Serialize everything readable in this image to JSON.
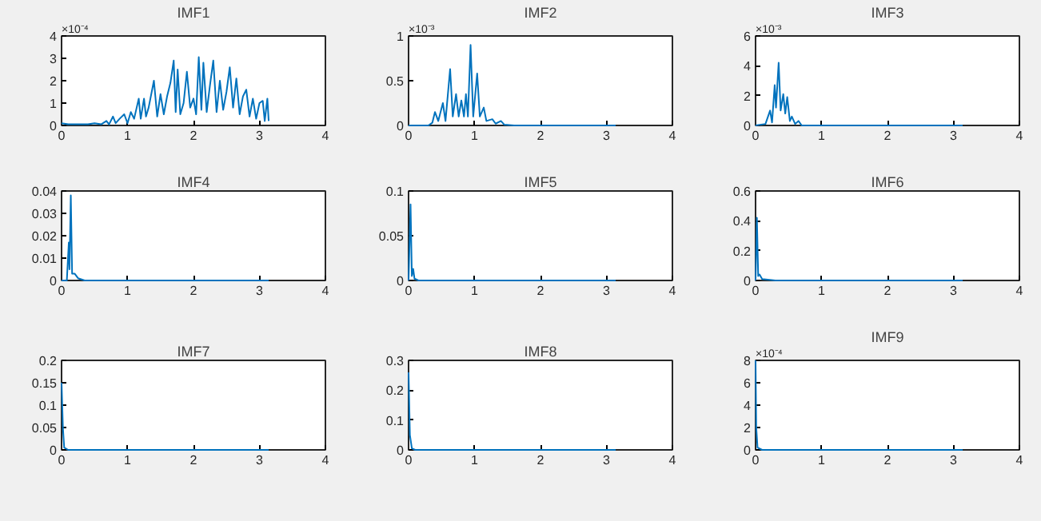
{
  "chart_data": [
    {
      "type": "line",
      "title": "IMF1",
      "color": "#0072bd",
      "annotations": [
        "×10⁻⁴"
      ],
      "xlim": [
        0,
        4
      ],
      "ylim": [
        0,
        4
      ],
      "xticks": [
        0,
        1,
        2,
        3,
        4
      ],
      "yticks": [
        0,
        1,
        2,
        3,
        4
      ],
      "x": [
        0,
        0.1,
        0.2,
        0.3,
        0.4,
        0.5,
        0.6,
        0.68,
        0.72,
        0.78,
        0.82,
        0.88,
        0.95,
        1.0,
        1.05,
        1.1,
        1.17,
        1.2,
        1.25,
        1.28,
        1.32,
        1.4,
        1.45,
        1.5,
        1.55,
        1.6,
        1.65,
        1.7,
        1.73,
        1.76,
        1.8,
        1.85,
        1.9,
        1.95,
        2.0,
        2.04,
        2.08,
        2.12,
        2.15,
        2.2,
        2.25,
        2.3,
        2.35,
        2.4,
        2.45,
        2.5,
        2.55,
        2.6,
        2.65,
        2.7,
        2.75,
        2.8,
        2.85,
        2.9,
        2.95,
        3.0,
        3.05,
        3.08,
        3.12,
        3.14
      ],
      "values": [
        0.1,
        0.05,
        0.05,
        0.05,
        0.05,
        0.1,
        0.05,
        0.2,
        0.05,
        0.4,
        0.1,
        0.3,
        0.5,
        0.1,
        0.6,
        0.3,
        1.2,
        0.3,
        1.2,
        0.4,
        0.8,
        2.0,
        0.4,
        1.4,
        0.5,
        1.3,
        1.9,
        2.9,
        0.6,
        2.5,
        0.5,
        1.0,
        2.4,
        0.8,
        1.2,
        0.5,
        3.05,
        0.7,
        2.8,
        0.6,
        1.8,
        2.9,
        0.6,
        2.0,
        0.7,
        1.5,
        2.6,
        0.8,
        2.1,
        0.5,
        1.3,
        1.6,
        0.4,
        1.2,
        0.3,
        1.0,
        1.1,
        0.2,
        1.2,
        0.2
      ]
    },
    {
      "type": "line",
      "title": "IMF2",
      "color": "#0072bd",
      "annotations": [
        "×10⁻³"
      ],
      "xlim": [
        0,
        4
      ],
      "ylim": [
        0,
        1
      ],
      "xticks": [
        0,
        1,
        2,
        3,
        4
      ],
      "yticks": [
        0,
        0.5,
        1
      ],
      "x": [
        0,
        0.3,
        0.36,
        0.4,
        0.45,
        0.52,
        0.56,
        0.63,
        0.67,
        0.72,
        0.76,
        0.8,
        0.84,
        0.87,
        0.9,
        0.94,
        0.98,
        1.04,
        1.08,
        1.14,
        1.18,
        1.27,
        1.32,
        1.4,
        1.45,
        1.6,
        3.14
      ],
      "values": [
        0,
        0,
        0.03,
        0.15,
        0.05,
        0.25,
        0.05,
        0.63,
        0.1,
        0.35,
        0.1,
        0.28,
        0.1,
        0.35,
        0.1,
        0.9,
        0.1,
        0.58,
        0.1,
        0.2,
        0.05,
        0.07,
        0.02,
        0.05,
        0.01,
        0,
        0
      ]
    },
    {
      "type": "line",
      "title": "IMF3",
      "color": "#0072bd",
      "annotations": [
        "×10⁻³"
      ],
      "xlim": [
        0,
        4
      ],
      "ylim": [
        0,
        6
      ],
      "xticks": [
        0,
        1,
        2,
        3,
        4
      ],
      "yticks": [
        0,
        2,
        4,
        6
      ],
      "x": [
        0,
        0.15,
        0.22,
        0.25,
        0.29,
        0.31,
        0.35,
        0.38,
        0.42,
        0.45,
        0.48,
        0.52,
        0.55,
        0.6,
        0.65,
        0.7,
        3.14
      ],
      "values": [
        0,
        0.1,
        1.0,
        0.2,
        2.7,
        1.2,
        4.2,
        1.0,
        2.1,
        0.8,
        1.9,
        0.3,
        0.6,
        0.1,
        0.3,
        0,
        0
      ]
    },
    {
      "type": "line",
      "title": "IMF4",
      "color": "#0072bd",
      "xlim": [
        0,
        4
      ],
      "ylim": [
        0,
        0.04
      ],
      "xticks": [
        0,
        1,
        2,
        3,
        4
      ],
      "yticks": [
        0,
        0.01,
        0.02,
        0.03,
        0.04
      ],
      "x": [
        0,
        0.08,
        0.11,
        0.12,
        0.14,
        0.16,
        0.2,
        0.25,
        0.35,
        3.14
      ],
      "values": [
        0,
        0,
        0.017,
        0.005,
        0.038,
        0.003,
        0.003,
        0.001,
        0,
        0
      ]
    },
    {
      "type": "line",
      "title": "IMF5",
      "color": "#0072bd",
      "xlim": [
        0,
        4
      ],
      "ylim": [
        0,
        0.1
      ],
      "xticks": [
        0,
        1,
        2,
        3,
        4
      ],
      "yticks": [
        0,
        0.05,
        0.1
      ],
      "x": [
        0,
        0.03,
        0.05,
        0.07,
        0.09,
        0.15,
        3.14
      ],
      "values": [
        0,
        0.085,
        0.005,
        0.013,
        0.002,
        0,
        0
      ]
    },
    {
      "type": "line",
      "title": "IMF6",
      "color": "#0072bd",
      "xlim": [
        0,
        4
      ],
      "ylim": [
        0,
        0.6
      ],
      "xticks": [
        0,
        1,
        2,
        3,
        4
      ],
      "yticks": [
        0,
        0.2,
        0.4,
        0.6
      ],
      "x": [
        0,
        0.02,
        0.04,
        0.06,
        0.1,
        0.3,
        3.14
      ],
      "values": [
        0,
        0.42,
        0.03,
        0.04,
        0.01,
        0,
        0
      ]
    },
    {
      "type": "line",
      "title": "IMF7",
      "color": "#0072bd",
      "xlim": [
        0,
        4
      ],
      "ylim": [
        0,
        0.2
      ],
      "xticks": [
        0,
        1,
        2,
        3,
        4
      ],
      "yticks": [
        0,
        0.05,
        0.1,
        0.15,
        0.2
      ],
      "x": [
        0,
        0.02,
        0.04,
        0.1,
        3.14
      ],
      "values": [
        0.15,
        0.05,
        0.005,
        0,
        0
      ]
    },
    {
      "type": "line",
      "title": "IMF8",
      "color": "#0072bd",
      "xlim": [
        0,
        4
      ],
      "ylim": [
        0,
        0.3
      ],
      "xticks": [
        0,
        1,
        2,
        3,
        4
      ],
      "yticks": [
        0,
        0.1,
        0.2,
        0.3
      ],
      "x": [
        0,
        0.02,
        0.05,
        0.1,
        3.14
      ],
      "values": [
        0.26,
        0.05,
        0.005,
        0,
        0
      ]
    },
    {
      "type": "line",
      "title": "IMF9",
      "color": "#0072bd",
      "annotations": [
        "×10⁻⁴"
      ],
      "xlim": [
        0,
        4
      ],
      "ylim": [
        0,
        8
      ],
      "xticks": [
        0,
        1,
        2,
        3,
        4
      ],
      "yticks": [
        0,
        2,
        4,
        6,
        8
      ],
      "x": [
        0,
        0.01,
        0.03,
        0.1,
        3.14
      ],
      "values": [
        8,
        2,
        0.2,
        0,
        0
      ]
    }
  ]
}
